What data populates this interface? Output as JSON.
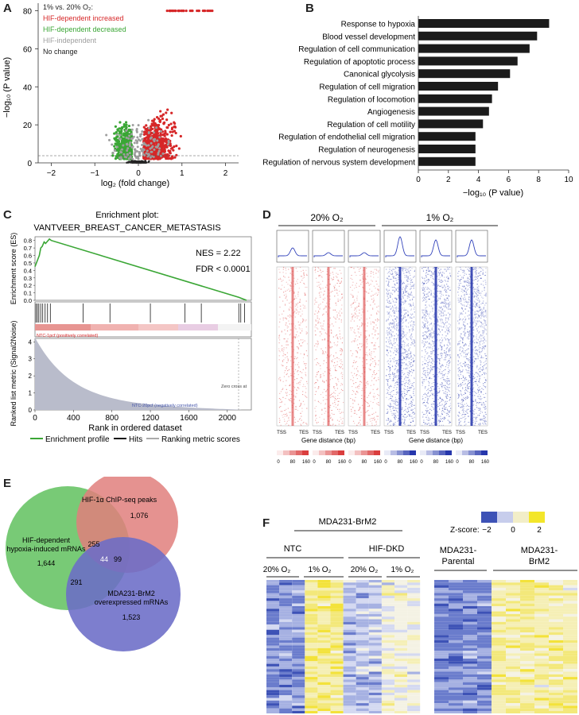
{
  "panels": {
    "A": "A",
    "B": "B",
    "C": "C",
    "D": "D",
    "E": "E",
    "F": "F"
  },
  "volcano": {
    "legend_title": "1% vs. 20% O₂:",
    "legend": [
      {
        "label": "HIF-dependent increased",
        "color": "#d62728"
      },
      {
        "label": "HIF-dependent decreased",
        "color": "#3aa635"
      },
      {
        "label": "HIF-independent",
        "color": "#9e9e9e"
      },
      {
        "label": "No change",
        "color": "#222222"
      }
    ],
    "xlabel": "log₂ (fold change)",
    "ylabel": "−log₁₀ (P value)",
    "xticks": [
      "−2",
      "−1",
      "0",
      "1",
      "2"
    ],
    "yticks": [
      "0",
      "20",
      "40",
      "60",
      "80"
    ]
  },
  "chart_data": [
    {
      "type": "bar",
      "title": "",
      "xlabel": "−log₁₀ (P value)",
      "ylabel": "",
      "orientation": "horizontal",
      "categories": [
        "Response to hypoxia",
        "Blood vessel development",
        "Regulation of cell communication",
        "Regulation of apoptotic process",
        "Canonical glycolysis",
        "Regulation of cell migration",
        "Regulation of locomotion",
        "Angiogenesis",
        "Regulation of cell motility",
        "Regulation of endothelial cell migration",
        "Regulation of neurogenesis",
        "Regulation of nervous system development"
      ],
      "values": [
        8.7,
        7.9,
        7.4,
        6.6,
        6.1,
        5.3,
        4.9,
        4.7,
        4.3,
        3.8,
        3.8,
        3.8
      ],
      "xlim": [
        0,
        10
      ],
      "xticks": [
        "0",
        "2",
        "4",
        "6",
        "8",
        "10"
      ]
    }
  ],
  "gsea": {
    "title": "Enrichment plot:",
    "gene_set": "VANTVEER_BREAST_CANCER_METASTASIS",
    "nes": "NES = 2.22",
    "fdr": "FDR < 0.0001",
    "es_ylabel": "Enrichment score (ES)",
    "rank_ylabel": "Ranked list metric (Signal2Noise)",
    "es_ticks": [
      "0.0",
      "0.1",
      "0.2",
      "0.3",
      "0.4",
      "0.5",
      "0.6",
      "0.7",
      "0.8"
    ],
    "rank_ticks": [
      "0",
      "1",
      "2",
      "3",
      "4"
    ],
    "x_ticks": [
      "0",
      "400",
      "800",
      "1200",
      "1600",
      "2000"
    ],
    "xlabel": "Rank in ordered dataset",
    "pos_label": "NTC-1pcf (positively correlated)",
    "neg_label": "NTC-20pcf (negatively correlated)",
    "zero_cross": "Zero cross at",
    "legend": [
      "Enrichment profile",
      "Hits",
      "Ranking metric scores"
    ]
  },
  "heatmap_d": {
    "group1": "20% O₂",
    "group2": "1% O₂",
    "tss": "TSS",
    "tes": "TES",
    "xlabel": "Gene distance (bp)",
    "scale_ticks": [
      "0",
      "80",
      "160"
    ]
  },
  "venn": {
    "hif_label": "HIF-1α ChIP-seq peaks",
    "hif_count": "1,076",
    "hyp_label1": "HIF-dependent",
    "hyp_label2": "hypoxia-induced mRNAs",
    "hyp_count": "1,644",
    "brm_label1": "MDA231-BrM2",
    "brm_label2": "overexpressed mRNAs",
    "brm_count": "1,523",
    "ab": "255",
    "bc": "99",
    "ac": "291",
    "abc": "44"
  },
  "heatmap_f": {
    "line_label": "MDA231-BrM2",
    "ntc": "NTC",
    "dkd": "HIF-DKD",
    "o20": "20% O₂",
    "o1": "1% O₂",
    "parental1": "MDA231-",
    "parental2": "Parental",
    "brm1": "MDA231-",
    "brm2": "BrM2",
    "zscore": "Z-score:",
    "zticks": [
      "−2",
      "0",
      "2"
    ]
  }
}
